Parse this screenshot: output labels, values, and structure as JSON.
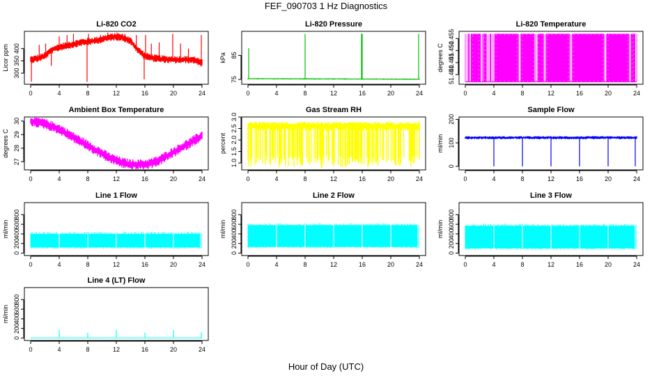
{
  "figure": {
    "title": "FEF_090703  1 Hz Diagnostics",
    "xlabel": "Hour of Day (UTC)"
  },
  "chart_data": [
    {
      "type": "line",
      "title": "Li-820 CO2",
      "ylabel": "Licor ppm",
      "color": "#ff0000",
      "xlim": [
        0,
        24
      ],
      "ylim": [
        255,
        470
      ],
      "xticks": [
        0,
        4,
        8,
        12,
        16,
        20,
        24
      ],
      "yticks": [
        300,
        350,
        400
      ],
      "base": {
        "x": [
          0,
          1,
          2,
          3,
          4,
          5,
          6,
          7,
          8,
          9,
          10,
          11,
          12,
          13,
          14,
          15,
          16,
          17,
          18,
          19,
          20,
          21,
          22,
          23,
          24
        ],
        "y": [
          355,
          360,
          370,
          395,
          405,
          412,
          418,
          425,
          428,
          432,
          438,
          445,
          448,
          445,
          430,
          395,
          370,
          362,
          358,
          356,
          355,
          355,
          355,
          354,
          340
        ]
      },
      "noise": 12,
      "spikes": [
        {
          "x": 0.1,
          "y": 265
        },
        {
          "x": 1.2,
          "y": 415
        },
        {
          "x": 2.1,
          "y": 420
        },
        {
          "x": 2.9,
          "y": 330
        },
        {
          "x": 4.0,
          "y": 450
        },
        {
          "x": 5.1,
          "y": 455
        },
        {
          "x": 6.0,
          "y": 460
        },
        {
          "x": 7.9,
          "y": 265
        },
        {
          "x": 8.1,
          "y": 460
        },
        {
          "x": 9.8,
          "y": 455
        },
        {
          "x": 10.8,
          "y": 465
        },
        {
          "x": 12.1,
          "y": 465
        },
        {
          "x": 13.2,
          "y": 460
        },
        {
          "x": 14.8,
          "y": 455
        },
        {
          "x": 15.9,
          "y": 275
        },
        {
          "x": 16.1,
          "y": 455
        },
        {
          "x": 16.9,
          "y": 420
        },
        {
          "x": 18.0,
          "y": 425
        },
        {
          "x": 19.9,
          "y": 460
        },
        {
          "x": 21.0,
          "y": 420
        },
        {
          "x": 22.1,
          "y": 400
        },
        {
          "x": 23.9,
          "y": 455
        }
      ]
    },
    {
      "type": "line",
      "title": "Li-820 Pressure",
      "ylabel": "kPa",
      "color": "#00c000",
      "xlim": [
        0,
        24
      ],
      "ylim": [
        73,
        95
      ],
      "xticks": [
        0,
        4,
        8,
        12,
        16,
        20,
        24
      ],
      "yticks": [
        75,
        85
      ],
      "base": {
        "x": [
          0,
          24
        ],
        "y": [
          75.3,
          75.1
        ]
      },
      "noise": 0.2,
      "spikes": [
        {
          "x": 0.1,
          "y": 88
        },
        {
          "x": 8.0,
          "y": 94
        },
        {
          "x": 15.9,
          "y": 94
        },
        {
          "x": 16.0,
          "y": 94
        },
        {
          "x": 23.9,
          "y": 94
        }
      ]
    },
    {
      "type": "step",
      "title": "Li-820 Temperature",
      "ylabel": "degrees C",
      "color": "#ff00ff",
      "xlim": [
        0,
        24
      ],
      "ylim": [
        51.436,
        51.458
      ],
      "xticks": [
        0,
        4,
        8,
        12,
        16,
        20,
        24
      ],
      "yticks": [
        51.44,
        51.445,
        51.45,
        51.455
      ],
      "ytick_labels": [
        "51.440",
        "51.445",
        "51.450",
        "51.455"
      ],
      "levels": [
        51.437,
        51.457
      ],
      "high_ranges": [
        [
          0.4,
          0.6
        ],
        [
          0.8,
          2.1
        ],
        [
          2.5,
          3.0
        ],
        [
          3.4,
          3.6
        ],
        [
          4.1,
          7.4
        ],
        [
          7.8,
          9.7
        ],
        [
          10.1,
          11.0
        ],
        [
          11.3,
          14.6
        ],
        [
          15.0,
          19.4
        ],
        [
          19.8,
          22.9
        ],
        [
          23.2,
          23.8
        ]
      ]
    },
    {
      "type": "line",
      "title": "Ambient Box Temperature",
      "ylabel": "degrees C",
      "color": "#ff00ff",
      "xlim": [
        0,
        24
      ],
      "ylim": [
        26.4,
        30.3
      ],
      "xticks": [
        0,
        4,
        8,
        12,
        16,
        20,
        24
      ],
      "yticks": [
        27,
        28,
        29,
        30
      ],
      "base": {
        "x": [
          0,
          1,
          2,
          3,
          4,
          5,
          6,
          7,
          8,
          9,
          10,
          11,
          12,
          13,
          14,
          15,
          16,
          17,
          18,
          19,
          20,
          21,
          22,
          23,
          24
        ],
        "y": [
          30.0,
          29.9,
          29.8,
          29.6,
          29.4,
          29.1,
          28.8,
          28.5,
          28.2,
          27.9,
          27.6,
          27.3,
          27.1,
          26.9,
          26.8,
          26.8,
          26.8,
          26.9,
          27.1,
          27.4,
          27.7,
          28.0,
          28.3,
          28.6,
          28.9
        ]
      },
      "noise": 0.3
    },
    {
      "type": "line",
      "title": "Gas Stream RH",
      "ylabel": "percent",
      "color": "#ffff00",
      "xlim": [
        0,
        24
      ],
      "ylim": [
        0.7,
        3.0
      ],
      "xticks": [
        0,
        4,
        8,
        12,
        16,
        20,
        24
      ],
      "yticks": [
        1.0,
        1.5,
        2.0,
        2.5,
        3.0
      ],
      "ytick_labels": [
        "1.0",
        "1.5",
        "2.0",
        "2.5",
        "3.0"
      ],
      "base": {
        "x": [
          0,
          24
        ],
        "y": [
          2.6,
          2.6
        ]
      },
      "noise": 0.15,
      "dropout_low": 0.8
    },
    {
      "type": "line",
      "title": "Sample Flow",
      "ylabel": "ml/min",
      "color": "#0000ff",
      "xlim": [
        0,
        24
      ],
      "ylim": [
        -15,
        210
      ],
      "xticks": [
        0,
        4,
        8,
        12,
        16,
        20,
        24
      ],
      "yticks": [
        0,
        100,
        200
      ],
      "base": {
        "x": [
          0,
          24
        ],
        "y": [
          122,
          122
        ]
      },
      "noise": 5,
      "spikes": [
        {
          "x": 4.0,
          "y": 0
        },
        {
          "x": 8.0,
          "y": 0
        },
        {
          "x": 12.0,
          "y": 0
        },
        {
          "x": 16.0,
          "y": 0
        },
        {
          "x": 20.0,
          "y": 0
        },
        {
          "x": 23.8,
          "y": 0
        }
      ]
    },
    {
      "type": "band",
      "title": "Line 1 Flow",
      "ylabel": "ml/min",
      "color": "#00ffff",
      "xlim": [
        0,
        24
      ],
      "ylim": [
        -50,
        1050
      ],
      "xticks": [
        0,
        4,
        8,
        12,
        16,
        20,
        24
      ],
      "yticks": [
        0,
        200,
        400,
        600,
        800
      ],
      "band": [
        120,
        400
      ],
      "gaps": [
        4.0,
        8.0,
        12.0,
        16.0,
        20.0,
        23.8
      ]
    },
    {
      "type": "band",
      "title": "Line 2 Flow",
      "ylabel": "ml/min",
      "color": "#00ffff",
      "xlim": [
        0,
        24
      ],
      "ylim": [
        -50,
        1050
      ],
      "xticks": [
        0,
        4,
        8,
        12,
        16,
        20,
        24
      ],
      "yticks": [
        0,
        200,
        400,
        600,
        800
      ],
      "band": [
        130,
        580
      ],
      "gaps": [
        4.0,
        8.0,
        12.0,
        16.0,
        20.0,
        23.8
      ]
    },
    {
      "type": "band",
      "title": "Line 3 Flow",
      "ylabel": "ml/min",
      "color": "#00ffff",
      "xlim": [
        0,
        24
      ],
      "ylim": [
        -50,
        1050
      ],
      "xticks": [
        0,
        4,
        8,
        12,
        16,
        20,
        24
      ],
      "yticks": [
        0,
        200,
        400,
        600,
        800
      ],
      "band": [
        100,
        570
      ],
      "gaps": [
        4.0,
        8.0,
        12.0,
        16.0,
        20.0,
        23.8
      ]
    },
    {
      "type": "line",
      "title": "Line 4 (LT) Flow",
      "ylabel": "ml/min",
      "color": "#00ffff",
      "xlim": [
        0,
        24
      ],
      "ylim": [
        -50,
        1050
      ],
      "xticks": [
        0,
        4,
        8,
        12,
        16,
        20,
        24
      ],
      "yticks": [
        0,
        200,
        400,
        600,
        800
      ],
      "base": {
        "x": [
          0,
          24
        ],
        "y": [
          5,
          5
        ]
      },
      "noise": 3,
      "spikes": [
        {
          "x": 4.0,
          "y": 170
        },
        {
          "x": 8.0,
          "y": 110
        },
        {
          "x": 12.0,
          "y": 170
        },
        {
          "x": 16.0,
          "y": 110
        },
        {
          "x": 20.0,
          "y": 170
        },
        {
          "x": 23.9,
          "y": 120
        }
      ]
    }
  ]
}
